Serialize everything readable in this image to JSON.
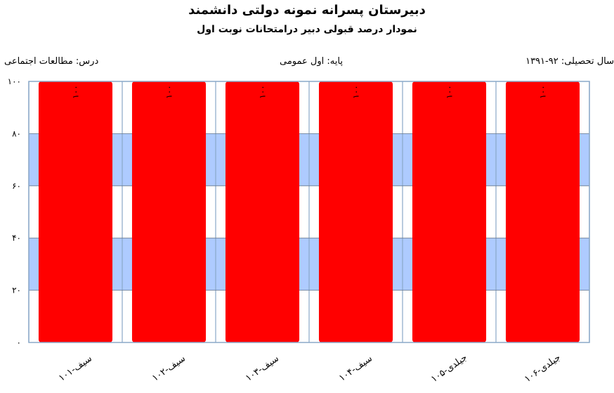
{
  "header": {
    "title": "دبیرستان پسرانه نمونه دولتی دانشمند",
    "subtitle": "نمودار درصد قبولی دبیر درامتحانات نوبت اول",
    "year": "سال تحصیلی: ۹۲-۱۳۹۱",
    "grade": "پایه: اول عمومی",
    "subject": "درس: مطالعات  اجتماعی"
  },
  "colors": {
    "bar": "#ff0000",
    "band_blue": "#aecbff",
    "band_white": "#ffffff",
    "grid": "#6a7a8c",
    "frame": "#8aa8c8"
  },
  "chart_data": {
    "type": "bar",
    "categories": [
      "سیف-۱۰۱",
      "سیف-۱۰۲",
      "سیف-۱۰۳",
      "سیف-۱۰۴",
      "جیلدی-۱۰۵",
      "جیلدی-۱۰۶"
    ],
    "values": [
      100,
      100,
      100,
      100,
      100,
      100
    ],
    "data_labels": [
      "۱۰۰",
      "۱۰۰",
      "۱۰۰",
      "۱۰۰",
      "۱۰۰",
      "۱۰۰"
    ],
    "y_ticks": [
      0,
      20,
      40,
      60,
      80,
      100
    ],
    "y_tick_labels": [
      "۰",
      "۲۰",
      "۴۰",
      "۶۰",
      "۸۰",
      "۱۰۰"
    ],
    "ylim": [
      0,
      100
    ],
    "grid": true,
    "legend": "none"
  }
}
